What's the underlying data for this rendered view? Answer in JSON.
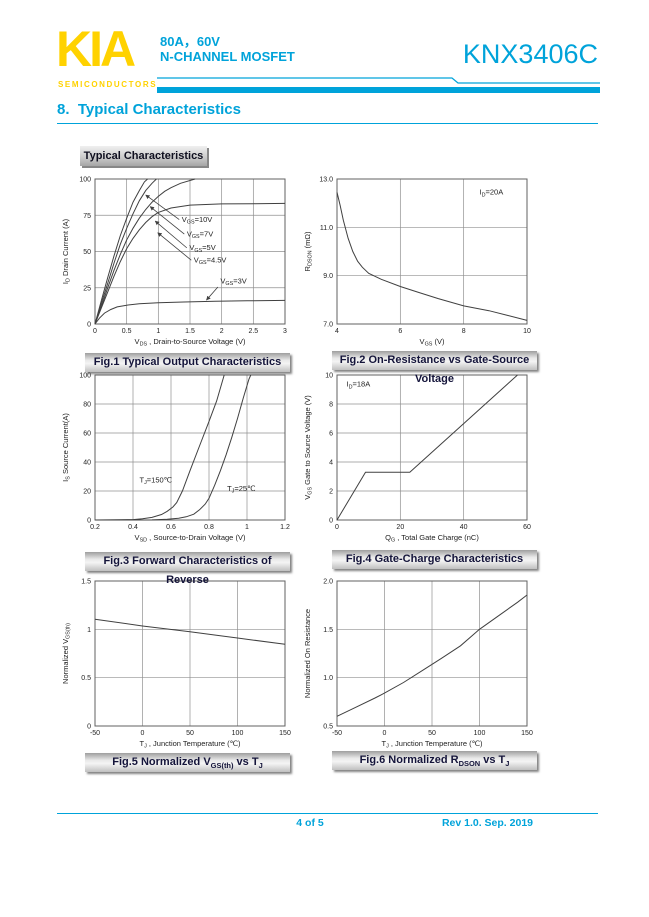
{
  "colors": {
    "accent": "#00A3DA",
    "logo_yellow": "#FFD200",
    "curve": "#404040",
    "grid": "#909090",
    "plot_border": "#606060",
    "tick_text": "#222222",
    "caption_text": "#14143A"
  },
  "header": {
    "logo_text": "KIA",
    "logo_sub": "SEMICONDUCTORS",
    "spec_line1": "80A，60V",
    "spec_line2": "N-CHANNEL MOSFET",
    "part_number": "KNX3406C",
    "section_title": "8.  Typical Characteristics"
  },
  "body_label": "Typical Characteristics",
  "footer": {
    "page_info": "4 of 5",
    "revision": "Rev 1.0. Sep. 2019"
  },
  "chart_data": [
    {
      "id": "fig1",
      "type": "line",
      "caption": "Fig.1 Typical Output Characteristics",
      "xlabel": "V~DS~ , Drain-to-Source Voltage (V)",
      "ylabel": "I~D~ Drain Current (A)",
      "xlim": [
        0,
        3
      ],
      "ylim": [
        0,
        100
      ],
      "xticks": {
        "values": [
          0,
          0.5,
          1,
          1.5,
          2,
          2.5,
          3
        ],
        "labels": [
          "0",
          "0.5",
          "1",
          "1.5",
          "2",
          "2.5",
          "3"
        ]
      },
      "yticks": {
        "values": [
          0,
          25,
          50,
          75,
          100
        ],
        "labels": [
          "0",
          "25",
          "50",
          "75",
          "100"
        ]
      },
      "series": [
        {
          "name": "V~GS~=10V",
          "points": [
            [
              0,
              0
            ],
            [
              0.1,
              16
            ],
            [
              0.2,
              32
            ],
            [
              0.3,
              47
            ],
            [
              0.4,
              61
            ],
            [
              0.5,
              73
            ],
            [
              0.6,
              84
            ],
            [
              0.7,
              92
            ],
            [
              0.78,
              98
            ],
            [
              0.83,
              100
            ]
          ]
        },
        {
          "name": "V~GS~=7V",
          "points": [
            [
              0,
              0
            ],
            [
              0.1,
              14
            ],
            [
              0.2,
              28
            ],
            [
              0.3,
              42
            ],
            [
              0.4,
              55
            ],
            [
              0.5,
              66
            ],
            [
              0.6,
              76
            ],
            [
              0.7,
              85
            ],
            [
              0.8,
              92
            ],
            [
              0.9,
              97
            ],
            [
              0.97,
              100
            ]
          ]
        },
        {
          "name": "V~GS~=5V",
          "points": [
            [
              0,
              0
            ],
            [
              0.1,
              12
            ],
            [
              0.2,
              25
            ],
            [
              0.3,
              37
            ],
            [
              0.4,
              48
            ],
            [
              0.5,
              58
            ],
            [
              0.6,
              66
            ],
            [
              0.7,
              73
            ],
            [
              0.8,
              79
            ],
            [
              0.9,
              84
            ],
            [
              1,
              88
            ],
            [
              1.1,
              91.5
            ],
            [
              1.2,
              94
            ],
            [
              1.35,
              97
            ],
            [
              1.58,
              100
            ]
          ]
        },
        {
          "name": "V~GS~=4.5V",
          "points": [
            [
              0,
              0
            ],
            [
              0.1,
              11
            ],
            [
              0.2,
              22
            ],
            [
              0.3,
              33
            ],
            [
              0.4,
              43
            ],
            [
              0.5,
              52
            ],
            [
              0.6,
              59
            ],
            [
              0.7,
              65
            ],
            [
              0.8,
              70
            ],
            [
              0.9,
              74
            ],
            [
              1,
              77
            ],
            [
              1.2,
              80
            ],
            [
              1.5,
              82
            ],
            [
              2,
              82.8
            ],
            [
              2.5,
              83
            ],
            [
              3,
              83.2
            ]
          ]
        },
        {
          "name": "V~GS~=3V",
          "points": [
            [
              0,
              0
            ],
            [
              0.07,
              4
            ],
            [
              0.15,
              7.5
            ],
            [
              0.25,
              10
            ],
            [
              0.35,
              11.8
            ],
            [
              0.5,
              13
            ],
            [
              0.7,
              13.9
            ],
            [
              1,
              14.6
            ],
            [
              1.4,
              15.2
            ],
            [
              1.9,
              15.7
            ],
            [
              2.4,
              16
            ],
            [
              3,
              16.3
            ]
          ]
        }
      ],
      "annotations": [
        {
          "text": "V~GS~=10V",
          "x": 1.37,
          "y": 70.5,
          "anchor": "start"
        },
        {
          "text": "V~GS~=7V",
          "x": 1.45,
          "y": 60.5,
          "anchor": "start"
        },
        {
          "text": "V~GS~=5V",
          "x": 1.49,
          "y": 51,
          "anchor": "start"
        },
        {
          "text": "V~GS~=4.5V",
          "x": 1.56,
          "y": 42.5,
          "anchor": "start"
        },
        {
          "text": "V~GS~=3V",
          "x": 1.98,
          "y": 28,
          "anchor": "start"
        }
      ],
      "leaders": [
        {
          "from": [
            1.33,
            72
          ],
          "to": [
            0.8,
            89
          ]
        },
        {
          "from": [
            1.41,
            62
          ],
          "to": [
            0.87,
            81
          ]
        },
        {
          "from": [
            1.45,
            52.5
          ],
          "to": [
            0.95,
            71
          ]
        },
        {
          "from": [
            1.52,
            44
          ],
          "to": [
            0.99,
            63
          ]
        },
        {
          "from": [
            1.94,
            25.5
          ],
          "to": [
            1.76,
            16.5
          ]
        }
      ]
    },
    {
      "id": "fig2",
      "type": "line",
      "caption": "Fig.2 On-Resistance vs Gate-Source Voltage",
      "xlabel": "V~GS~ (V)",
      "ylabel": "R~DSON~ (mΩ)",
      "xlim": [
        4,
        10
      ],
      "ylim": [
        7,
        13
      ],
      "xticks": {
        "values": [
          4,
          6,
          8,
          10
        ],
        "labels": [
          "4",
          "6",
          "8",
          "10"
        ]
      },
      "yticks": {
        "values": [
          7,
          9,
          11,
          13
        ],
        "labels": [
          "7.0",
          "9.0",
          "11.0",
          "13.0"
        ]
      },
      "series": [
        {
          "name": "R~DSON~",
          "points": [
            [
              4,
              12.45
            ],
            [
              4.1,
              11.9
            ],
            [
              4.2,
              11.3
            ],
            [
              4.35,
              10.55
            ],
            [
              4.5,
              10
            ],
            [
              4.65,
              9.6
            ],
            [
              4.8,
              9.35
            ],
            [
              5,
              9.1
            ],
            [
              5.4,
              8.85
            ],
            [
              6,
              8.55
            ],
            [
              6.6,
              8.3
            ],
            [
              7.2,
              8.05
            ],
            [
              8,
              7.75
            ],
            [
              8.8,
              7.55
            ],
            [
              9.4,
              7.35
            ],
            [
              10,
              7.15
            ]
          ]
        }
      ],
      "annotations": [
        {
          "text": "I~D~=20A",
          "x": 8.5,
          "y": 12.35,
          "anchor": "start"
        }
      ],
      "leaders": []
    },
    {
      "id": "fig3",
      "type": "line",
      "caption": "Fig.3 Forward Characteristics of Reverse",
      "xlabel": "V~SD~ , Source-to-Drain Voltage (V)",
      "ylabel": "I~S~ Source Current(A)",
      "xlim": [
        0.2,
        1.2
      ],
      "ylim": [
        0,
        100
      ],
      "xticks": {
        "values": [
          0.2,
          0.4,
          0.6,
          0.8,
          1,
          1.2
        ],
        "labels": [
          "0.2",
          "0.4",
          "0.6",
          "0.8",
          "1",
          "1.2"
        ]
      },
      "yticks": {
        "values": [
          0,
          20,
          40,
          60,
          80,
          100
        ],
        "labels": [
          "0",
          "20",
          "40",
          "60",
          "80",
          "100"
        ]
      },
      "series": [
        {
          "name": "T~J~=150℃",
          "points": [
            [
              0.2,
              0
            ],
            [
              0.4,
              0.3
            ],
            [
              0.45,
              0.8
            ],
            [
              0.5,
              1.8
            ],
            [
              0.55,
              3.8
            ],
            [
              0.58,
              6
            ],
            [
              0.61,
              9
            ],
            [
              0.63,
              12
            ],
            [
              0.66,
              20
            ],
            [
              0.7,
              34
            ],
            [
              0.75,
              51
            ],
            [
              0.8,
              68
            ],
            [
              0.84,
              82
            ],
            [
              0.88,
              100
            ]
          ]
        },
        {
          "name": "T~J~=25℃",
          "points": [
            [
              0.2,
              0
            ],
            [
              0.5,
              0.1
            ],
            [
              0.58,
              0.5
            ],
            [
              0.64,
              1.2
            ],
            [
              0.68,
              2.2
            ],
            [
              0.72,
              4
            ],
            [
              0.75,
              7
            ],
            [
              0.78,
              11
            ],
            [
              0.8,
              15
            ],
            [
              0.83,
              24
            ],
            [
              0.86,
              34
            ],
            [
              0.89,
              45
            ],
            [
              0.92,
              57
            ],
            [
              0.95,
              70
            ],
            [
              0.98,
              84
            ],
            [
              1.01,
              97
            ],
            [
              1.02,
              100
            ]
          ]
        }
      ],
      "annotations": [
        {
          "text": "T~J~=150℃",
          "x": 0.52,
          "y": 26,
          "anchor": "middle"
        },
        {
          "text": "T~J~=25℃",
          "x": 0.97,
          "y": 20,
          "anchor": "middle"
        }
      ],
      "leaders": []
    },
    {
      "id": "fig4",
      "type": "line",
      "caption": "Fig.4 Gate-Charge Characteristics",
      "xlabel": "Q~G~ , Total Gate Charge (nC)",
      "ylabel": "V~GS~  Gate to Source Voltage (V)",
      "xlim": [
        0,
        60
      ],
      "ylim": [
        0,
        10
      ],
      "xticks": {
        "values": [
          0,
          20,
          40,
          60
        ],
        "labels": [
          "0",
          "20",
          "40",
          "60"
        ]
      },
      "yticks": {
        "values": [
          0,
          2,
          4,
          6,
          8,
          10
        ],
        "labels": [
          "0",
          "2",
          "4",
          "6",
          "8",
          "10"
        ]
      },
      "series": [
        {
          "name": "V~GS~",
          "points": [
            [
              0,
              0
            ],
            [
              9,
              3.3
            ],
            [
              23,
              3.3
            ],
            [
              57,
              10
            ]
          ]
        }
      ],
      "annotations": [
        {
          "text": "I~D~=18A",
          "x": 3,
          "y": 9.2,
          "anchor": "start"
        }
      ],
      "leaders": []
    },
    {
      "id": "fig5",
      "type": "line",
      "caption": "Fig.5 Normalized V~GS(th)~ vs T~J~",
      "xlabel": "T~J~ , Junction Temperature (℃)",
      "ylabel": "Normalized V~GS(th)~",
      "xlim": [
        -50,
        150
      ],
      "ylim": [
        0,
        1.5
      ],
      "xticks": {
        "values": [
          -50,
          0,
          50,
          100,
          150
        ],
        "labels": [
          "-50",
          "0",
          "50",
          "100",
          "150"
        ]
      },
      "yticks": {
        "values": [
          0,
          0.5,
          1,
          1.5
        ],
        "labels": [
          "0",
          "0.5",
          "1",
          "1.5"
        ]
      },
      "series": [
        {
          "name": "Normalized V~GS(th)~",
          "points": [
            [
              -50,
              1.105
            ],
            [
              0,
              1.035
            ],
            [
              50,
              0.975
            ],
            [
              100,
              0.91
            ],
            [
              150,
              0.845
            ]
          ]
        }
      ],
      "annotations": [],
      "leaders": []
    },
    {
      "id": "fig6",
      "type": "line",
      "caption": "Fig.6 Normalized R~DSON~ vs T~J~",
      "xlabel": "T~J~ , Junction Temperature (℃)",
      "ylabel": "Normalized On Resistance",
      "xlim": [
        -50,
        150
      ],
      "ylim": [
        0.5,
        2
      ],
      "xticks": {
        "values": [
          -50,
          0,
          50,
          100,
          150
        ],
        "labels": [
          "-50",
          "0",
          "50",
          "100",
          "150"
        ]
      },
      "yticks": {
        "values": [
          0.5,
          1,
          1.5,
          2
        ],
        "labels": [
          "0.5",
          "1.0",
          "1.5",
          "2.0"
        ]
      },
      "series": [
        {
          "name": "Normalized R~DSON~",
          "points": [
            [
              -50,
              0.6
            ],
            [
              -30,
              0.695
            ],
            [
              -10,
              0.79
            ],
            [
              0,
              0.84
            ],
            [
              20,
              0.95
            ],
            [
              40,
              1.075
            ],
            [
              60,
              1.2
            ],
            [
              80,
              1.33
            ],
            [
              100,
              1.5
            ],
            [
              120,
              1.64
            ],
            [
              140,
              1.78
            ],
            [
              150,
              1.855
            ]
          ]
        }
      ],
      "annotations": [],
      "leaders": []
    }
  ]
}
